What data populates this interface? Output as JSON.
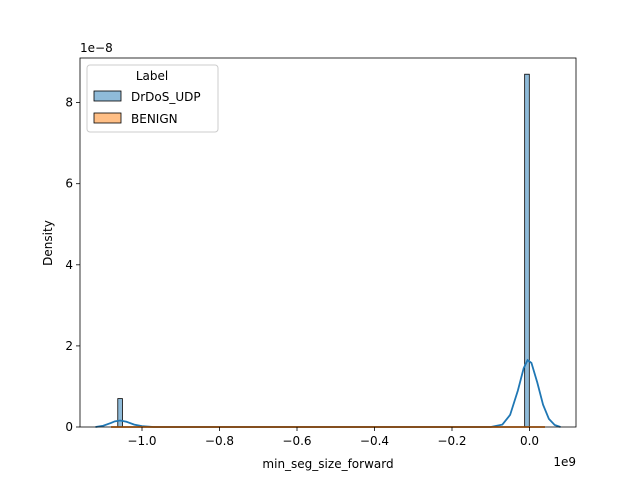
{
  "chart_data": {
    "type": "histogram",
    "xlabel": "min_seg_size_forward",
    "ylabel": "Density",
    "x_scale_label": "1e9",
    "y_scale_label": "1e−8",
    "xlim": [
      -1.16,
      0.12
    ],
    "ylim": [
      0,
      9.1
    ],
    "x_ticks": [
      {
        "value": -1.0,
        "label": "−1.0"
      },
      {
        "value": -0.8,
        "label": "−0.8"
      },
      {
        "value": -0.6,
        "label": "−0.6"
      },
      {
        "value": -0.4,
        "label": "−0.4"
      },
      {
        "value": -0.2,
        "label": "−0.2"
      },
      {
        "value": 0.0,
        "label": "0.0"
      }
    ],
    "y_ticks": [
      {
        "value": 0,
        "label": "0"
      },
      {
        "value": 2,
        "label": "2"
      },
      {
        "value": 4,
        "label": "4"
      },
      {
        "value": 6,
        "label": "6"
      },
      {
        "value": 8,
        "label": "8"
      }
    ],
    "legend": {
      "title": "Label",
      "placement": "top-left",
      "entries": [
        {
          "name": "DrDoS_UDP",
          "color": "#1f77b4"
        },
        {
          "name": "BENIGN",
          "color": "#ff7f0e"
        }
      ]
    },
    "series": [
      {
        "name": "DrDoS_UDP",
        "color": "#1f77b4",
        "bars": [
          {
            "x0": -1.0625,
            "x1": -1.0505,
            "height": 0.7
          },
          {
            "x0": -0.0125,
            "x1": -0.0005,
            "height": 8.7
          }
        ],
        "kde": [
          [
            -1.12,
            0.0
          ],
          [
            -1.1,
            0.03
          ],
          [
            -1.08,
            0.1
          ],
          [
            -1.07,
            0.14
          ],
          [
            -1.056,
            0.16
          ],
          [
            -1.04,
            0.13
          ],
          [
            -1.02,
            0.06
          ],
          [
            -1.0,
            0.02
          ],
          [
            -0.97,
            0.0
          ],
          [
            -0.1,
            0.0
          ],
          [
            -0.07,
            0.06
          ],
          [
            -0.05,
            0.3
          ],
          [
            -0.03,
            0.9
          ],
          [
            -0.015,
            1.45
          ],
          [
            -0.005,
            1.65
          ],
          [
            0.005,
            1.58
          ],
          [
            0.02,
            1.1
          ],
          [
            0.035,
            0.55
          ],
          [
            0.05,
            0.2
          ],
          [
            0.065,
            0.05
          ],
          [
            0.08,
            0.0
          ]
        ]
      },
      {
        "name": "BENIGN",
        "color": "#ff7f0e",
        "bars": [],
        "kde": [
          [
            -1.08,
            0.0
          ],
          [
            -1.03,
            0.0
          ],
          [
            -0.06,
            0.0
          ],
          [
            0.04,
            0.0
          ]
        ]
      }
    ]
  }
}
